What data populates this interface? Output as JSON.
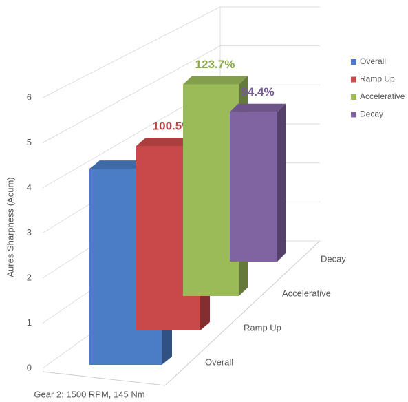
{
  "chart_data": {
    "type": "bar3d",
    "y_label": "Aures Sharpness (Acum)",
    "x_label": "Gear 2: 1500 RPM, 145 Nm",
    "ylim": [
      0,
      6
    ],
    "yticks": [
      0,
      1,
      2,
      3,
      4,
      5,
      6
    ],
    "grid": true,
    "legend": "right",
    "categories": [
      null
    ],
    "series": [
      {
        "name": "Overall",
        "color": "#4a7dc6",
        "values": [
          4.35
        ]
      },
      {
        "name": "Ramp Up",
        "color": "#c9494a",
        "values": [
          4.37
        ],
        "annotation": "100.5%"
      },
      {
        "name": "Accelerative",
        "color": "#9bbb59",
        "values": [
          5.38
        ],
        "annotation": "123.7%"
      },
      {
        "name": "Decay",
        "color": "#8064a2",
        "values": [
          4.1
        ],
        "annotation": "94.4%"
      }
    ]
  }
}
